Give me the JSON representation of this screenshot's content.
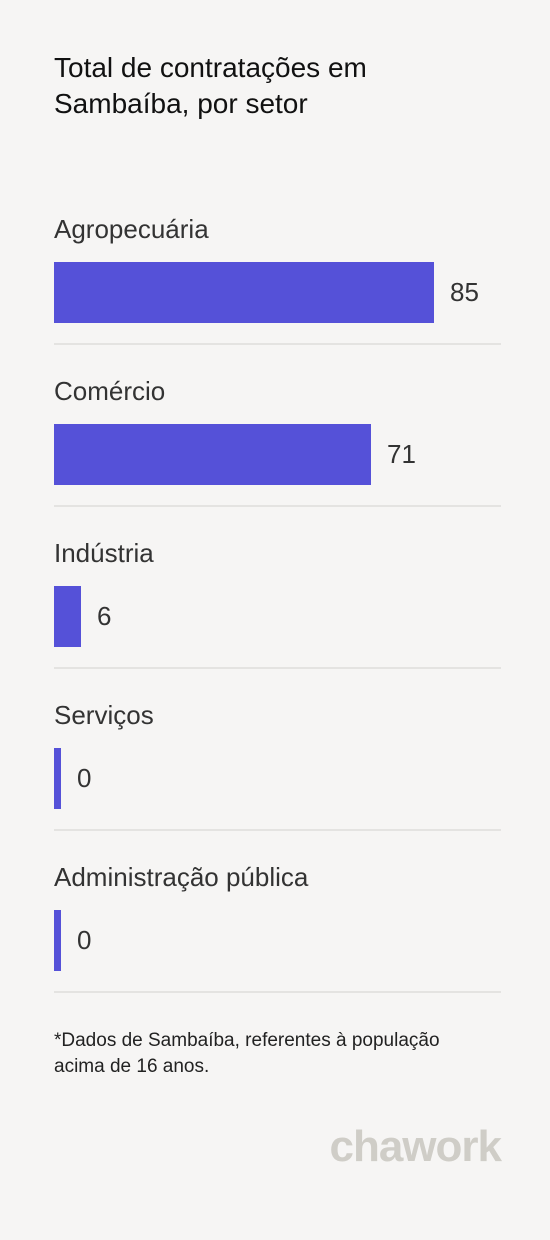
{
  "header": {
    "title": "Total de contratações em Sambaíba, por setor"
  },
  "chart_data": {
    "type": "bar",
    "orientation": "horizontal",
    "categories": [
      "Agropecuária",
      "Comércio",
      "Indústria",
      "Serviços",
      "Administração pública"
    ],
    "values": [
      85,
      71,
      6,
      0,
      0
    ],
    "title": "Total de contratações em Sambaíba, por setor",
    "xlim": [
      0,
      100
    ],
    "grid": false,
    "bar_color": "#5551d8"
  },
  "footnote": "*Dados de Sambaíba, referentes à população acima de 16 anos.",
  "brand": {
    "logo_text": "chawork"
  }
}
